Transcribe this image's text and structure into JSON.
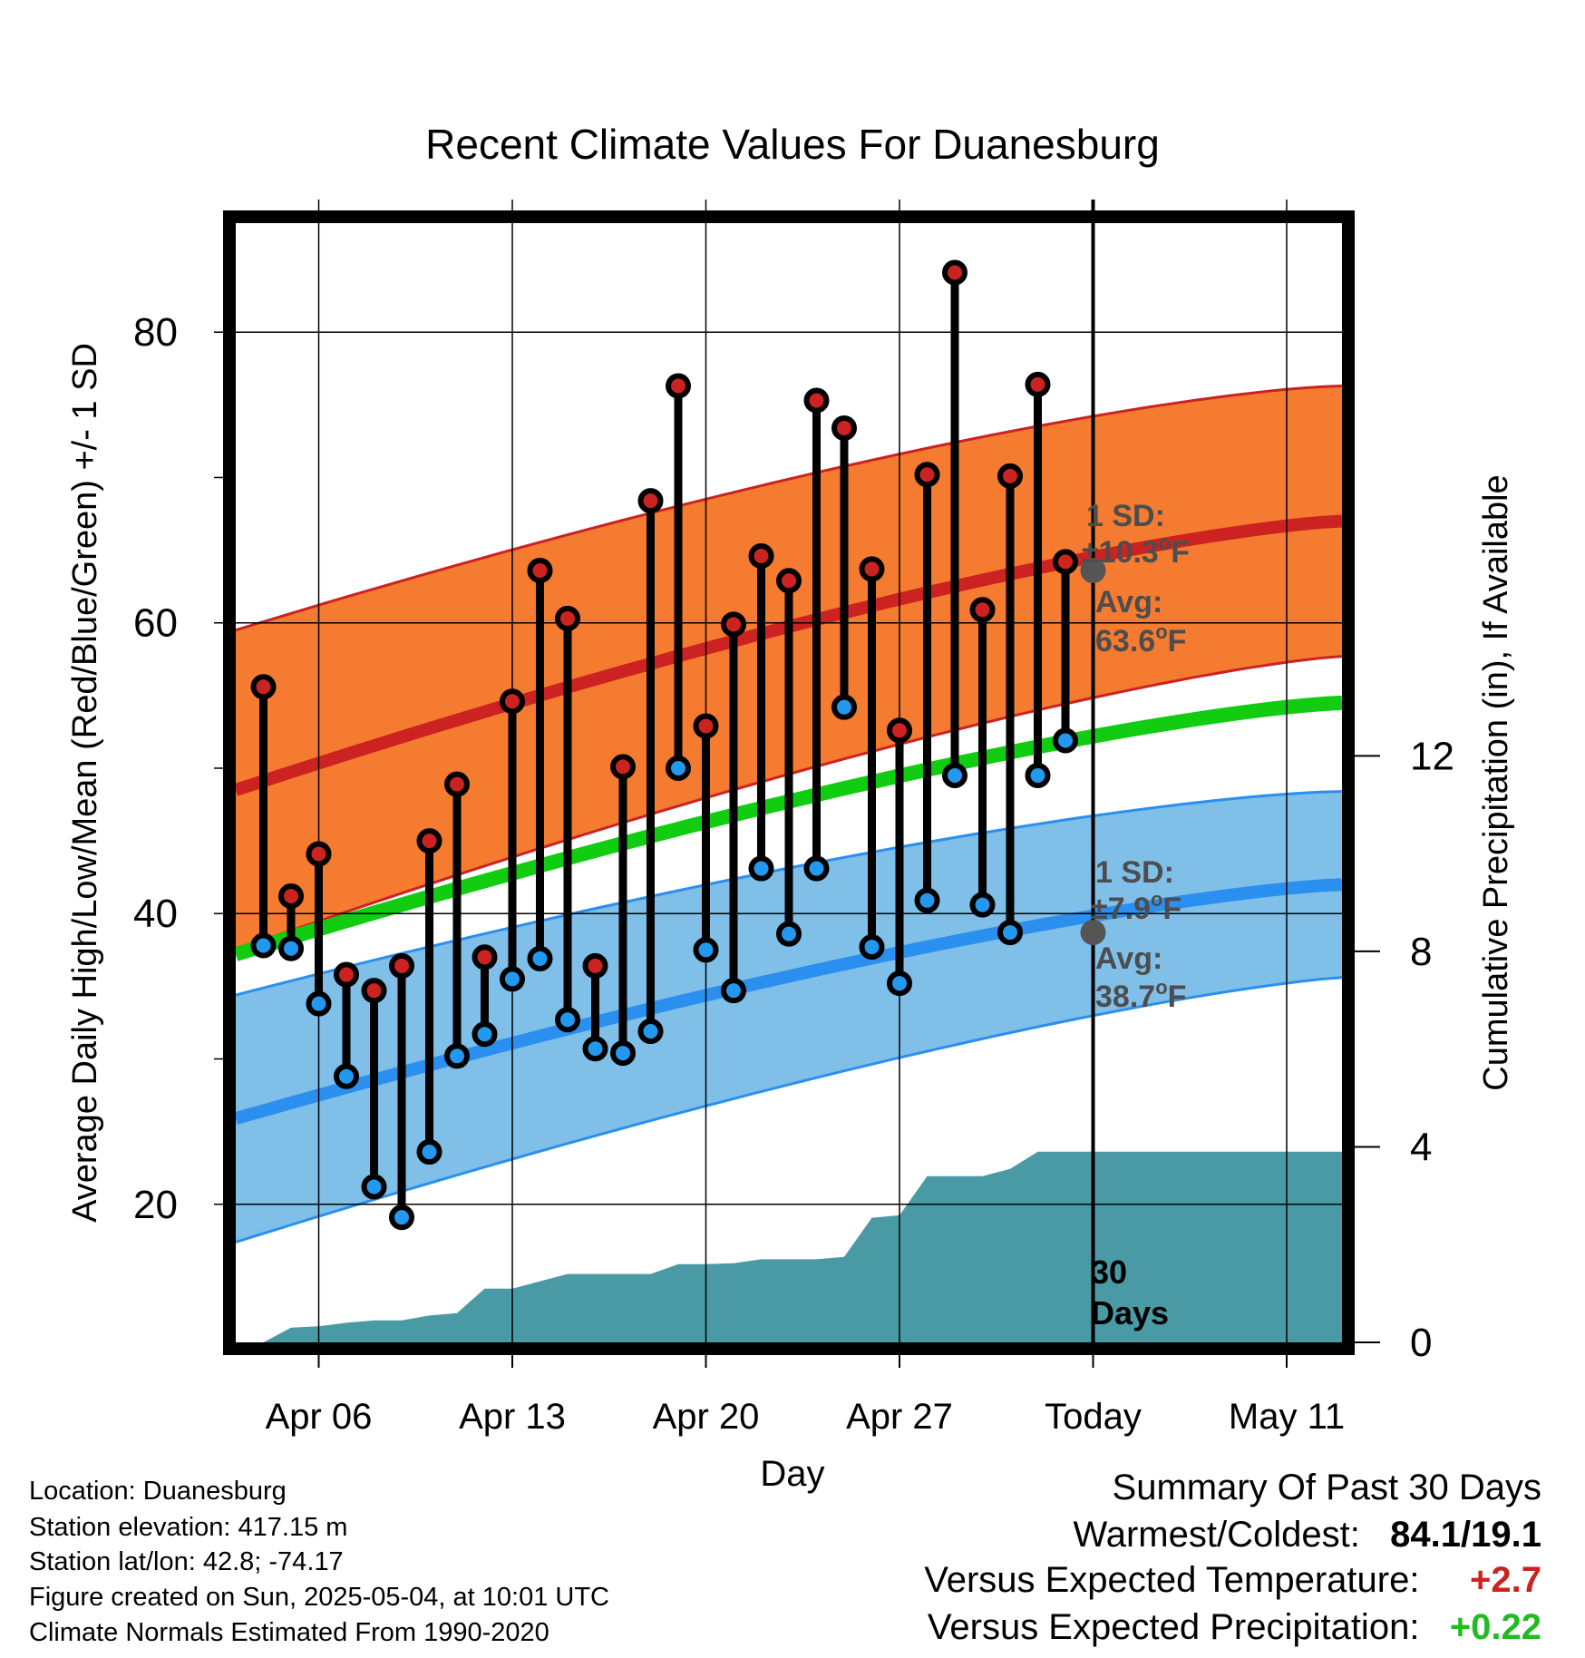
{
  "chart_data": {
    "type": "line",
    "title": "Recent Climate Values For Duanesburg",
    "xlabel": "Day",
    "ylabel": "Average Daily High/Low/Mean (Red/Blue/Green) +/- 1 SD",
    "y2label": "Cumulative Precipitation (in), If Available",
    "ylim": [
      10.5,
      87.5
    ],
    "y2lim": [
      0,
      22.9
    ],
    "yticks": [
      "20",
      "40",
      "60",
      "80"
    ],
    "y2ticks": [
      "0",
      "4",
      "8",
      "12"
    ],
    "xticks": [
      "Apr 06",
      "Apr 13",
      "Apr 20",
      "Apr 27",
      "Today",
      "May 11"
    ],
    "x_start": "2025-04-03",
    "x_end": "2025-05-13",
    "today": "2025-05-04",
    "grid": true,
    "days": [
      "2025-04-04",
      "2025-04-05",
      "2025-04-06",
      "2025-04-07",
      "2025-04-08",
      "2025-04-09",
      "2025-04-10",
      "2025-04-11",
      "2025-04-12",
      "2025-04-13",
      "2025-04-14",
      "2025-04-15",
      "2025-04-16",
      "2025-04-17",
      "2025-04-18",
      "2025-04-19",
      "2025-04-20",
      "2025-04-21",
      "2025-04-22",
      "2025-04-23",
      "2025-04-24",
      "2025-04-25",
      "2025-04-26",
      "2025-04-27",
      "2025-04-28",
      "2025-04-29",
      "2025-04-30",
      "2025-05-01",
      "2025-05-02",
      "2025-05-03"
    ],
    "series": [
      {
        "name": "High",
        "color": "#cc2222",
        "values": [
          55.6,
          41.2,
          44.1,
          35.8,
          34.7,
          36.4,
          45.0,
          48.9,
          37.0,
          54.6,
          63.6,
          60.3,
          36.4,
          50.1,
          68.4,
          76.3,
          52.9,
          59.9,
          64.6,
          62.9,
          75.3,
          73.4,
          63.7,
          52.6,
          70.2,
          84.1,
          60.9,
          70.1,
          76.4,
          64.2
        ]
      },
      {
        "name": "Low",
        "color": "#2299ee",
        "values": [
          37.8,
          37.6,
          33.8,
          28.8,
          21.2,
          19.1,
          23.6,
          30.2,
          31.7,
          35.5,
          36.9,
          32.7,
          30.7,
          30.4,
          31.9,
          50.0,
          37.5,
          34.7,
          43.1,
          38.6,
          43.1,
          54.2,
          37.7,
          35.2,
          40.9,
          49.5,
          40.6,
          38.7,
          49.5,
          51.9
        ]
      }
    ],
    "bands": {
      "high_mean": {
        "color": "#cc2222",
        "start": 48.5,
        "end": 67.0,
        "sd_start": 11.0,
        "sd_end": 9.3,
        "fill": "#f47b30"
      },
      "low_mean": {
        "color": "#2a8fee",
        "start": 25.9,
        "end": 42.0,
        "sd_start": 8.5,
        "sd_end": 6.4,
        "fill": "#7fbfe8"
      },
      "mean": {
        "color": "#11cc11",
        "start": 37.2,
        "end": 54.5
      }
    },
    "precipitation": {
      "color": "#4a9aa5",
      "days": [
        "2025-04-04",
        "2025-04-05",
        "2025-04-06",
        "2025-04-07",
        "2025-04-08",
        "2025-04-09",
        "2025-04-10",
        "2025-04-11",
        "2025-04-12",
        "2025-04-13",
        "2025-04-14",
        "2025-04-15",
        "2025-04-16",
        "2025-04-17",
        "2025-04-18",
        "2025-04-19",
        "2025-04-20",
        "2025-04-21",
        "2025-04-22",
        "2025-04-23",
        "2025-04-24",
        "2025-04-25",
        "2025-04-26",
        "2025-04-27",
        "2025-04-28",
        "2025-04-29",
        "2025-04-30",
        "2025-05-01",
        "2025-05-02",
        "2025-05-03",
        "2025-05-04",
        "2025-05-13"
      ],
      "values": [
        0.0,
        0.3,
        0.33,
        0.4,
        0.45,
        0.45,
        0.55,
        0.6,
        1.1,
        1.1,
        1.25,
        1.4,
        1.4,
        1.4,
        1.4,
        1.6,
        1.6,
        1.62,
        1.7,
        1.7,
        1.7,
        1.75,
        2.55,
        2.6,
        3.4,
        3.4,
        3.4,
        3.55,
        3.9,
        3.9,
        3.9,
        3.9
      ]
    },
    "annotations": {
      "high": {
        "sd_label": "1 SD:",
        "sd_value": "±10.3",
        "avg_label": "Avg:",
        "avg_value": "63.6",
        "avg": 63.6,
        "unit": "F",
        "deg": "o"
      },
      "low": {
        "sd_label": "1 SD:",
        "sd_value": "±7.9",
        "avg_label": "Avg:",
        "avg_value": "38.7",
        "avg": 38.7,
        "unit": "F",
        "deg": "o"
      },
      "days_label_1": "30",
      "days_label_2": "Days"
    }
  },
  "footer": {
    "location": "Location: Duanesburg",
    "elevation": "Station elevation: 417.15 m",
    "latlon": "Station lat/lon: 42.8; -74.17",
    "created": "Figure created on Sun, 2025-05-04, at 10:01 UTC",
    "normals": "Climate Normals Estimated From 1990-2020"
  },
  "summary": {
    "title": "Summary Of Past 30 Days",
    "warmest_label": "Warmest/Coldest:",
    "warmest_value": "84.1/19.1",
    "temp_label": "Versus Expected Temperature:",
    "temp_value": "+2.7",
    "temp_color": "#cc2222",
    "precip_label": "Versus Expected Precipitation:",
    "precip_value": "+0.22",
    "precip_color": "#22bb22"
  }
}
